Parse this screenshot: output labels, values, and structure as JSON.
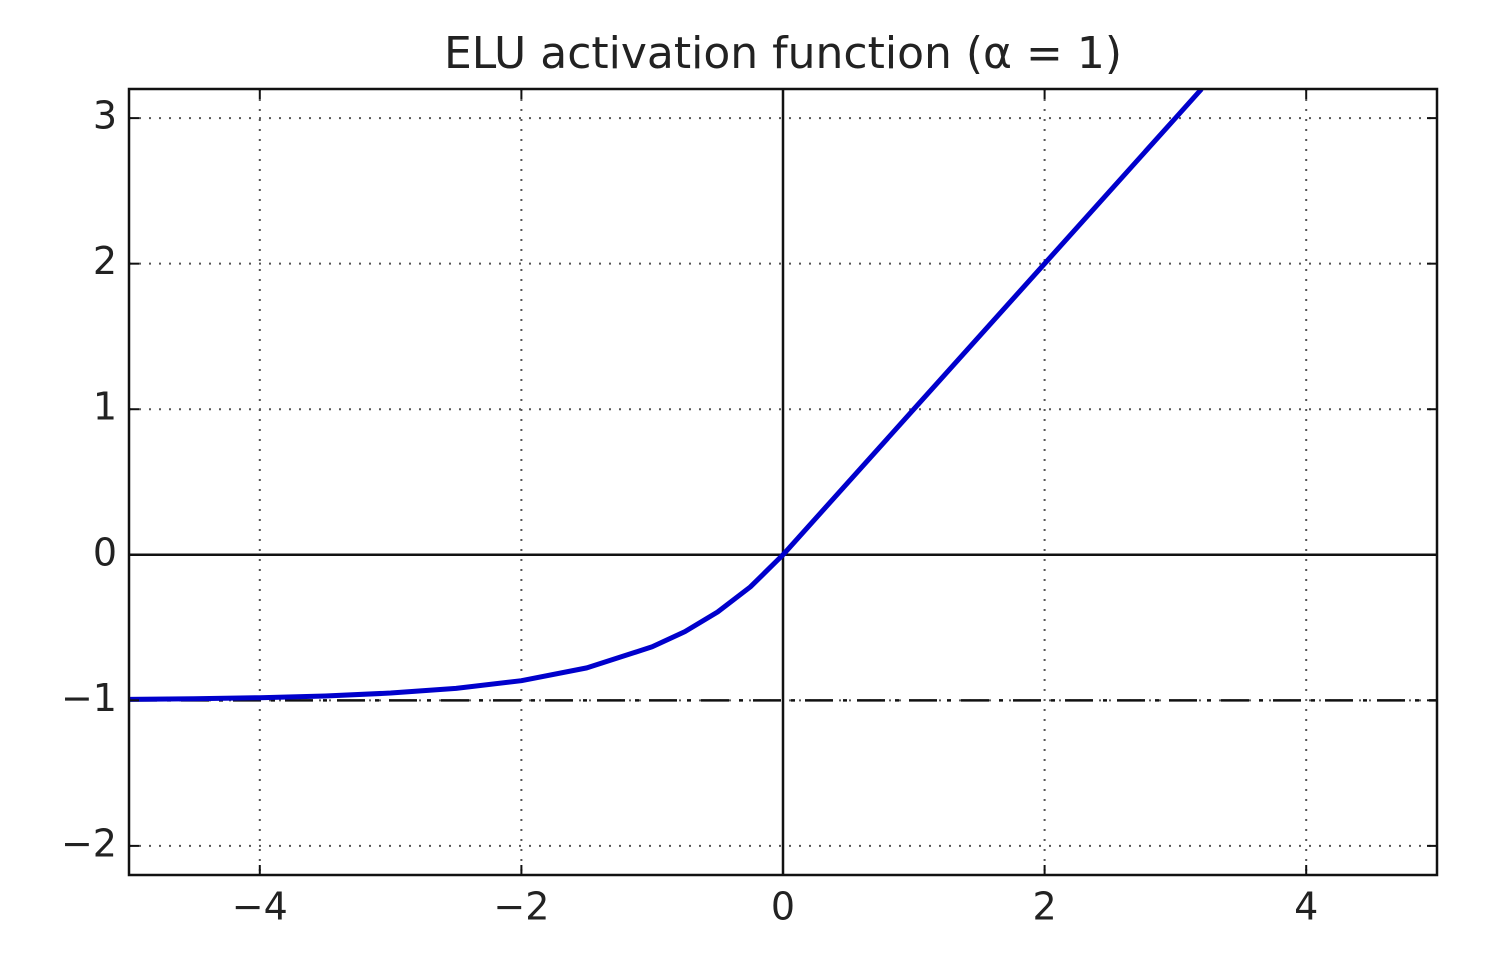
{
  "chart_data": {
    "type": "line",
    "title": "ELU activation function (α = 1)",
    "x": [
      -5,
      -4.5,
      -4,
      -3.5,
      -3,
      -2.5,
      -2,
      -1.5,
      -1,
      -0.75,
      -0.5,
      -0.25,
      0,
      1,
      2,
      3,
      3.2
    ],
    "series": [
      {
        "color": "#0000cc",
        "values": [
          -0.993,
          -0.989,
          -0.982,
          -0.97,
          -0.95,
          -0.918,
          -0.865,
          -0.777,
          -0.632,
          -0.528,
          -0.393,
          -0.221,
          0,
          1,
          2,
          3,
          3.2
        ]
      }
    ],
    "xlim": [
      -5,
      5
    ],
    "ylim": [
      -2.2,
      3.2
    ],
    "xticks": [
      {
        "value": -4,
        "label": "−4"
      },
      {
        "value": -2,
        "label": "−2"
      },
      0,
      2,
      4
    ],
    "yticks": [
      {
        "value": -2,
        "label": "−2"
      },
      {
        "value": -1,
        "label": "−1"
      },
      0,
      1,
      2,
      3
    ],
    "grid": true,
    "hlines": [
      {
        "y": 0,
        "style": "solid"
      },
      {
        "y": -1,
        "style": "dashdot"
      }
    ],
    "vlines": [
      {
        "x": 0,
        "style": "solid"
      }
    ]
  }
}
